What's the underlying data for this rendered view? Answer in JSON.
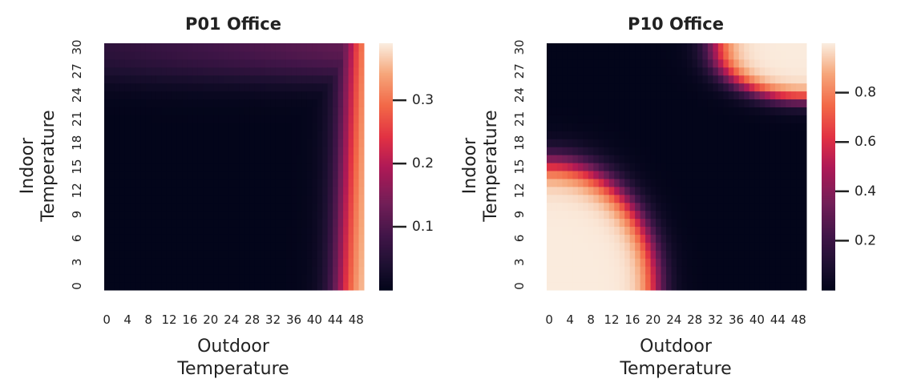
{
  "chart_data": [
    {
      "type": "heatmap",
      "title": "P01 Office",
      "xlabel": [
        "Outdoor",
        "Temperature"
      ],
      "ylabel": [
        "Indoor",
        "Temperature"
      ],
      "x_tick_labels": [
        "0",
        "4",
        "8",
        "12",
        "16",
        "20",
        "24",
        "28",
        "32",
        "36",
        "40",
        "44",
        "48"
      ],
      "x_tick_step": 4,
      "x_range": [
        0,
        49
      ],
      "y_tick_labels": [
        "0",
        "3",
        "6",
        "9",
        "12",
        "15",
        "18",
        "21",
        "24",
        "27",
        "30"
      ],
      "y_tick_step": 3,
      "y_range": [
        0,
        30
      ],
      "colormap": "rocket",
      "colorbar": {
        "range": [
          0.0,
          0.39
        ],
        "ticks": [
          0.1,
          0.2,
          0.3
        ],
        "tick_labels": [
          "0.1",
          "0.2",
          "0.3"
        ]
      },
      "pattern": "values near 0 for most of the grid; rise above outdoor temperature ~40 to about 0.39 at outdoor 49 (highest at low indoor temperature); a faint band of ~0.08–0.14 along indoor temperatures 27–30"
    },
    {
      "type": "heatmap",
      "title": "P10 Office",
      "xlabel": [
        "Outdoor",
        "Temperature"
      ],
      "ylabel": [
        "Indoor",
        "Temperature"
      ],
      "x_tick_labels": [
        "0",
        "4",
        "8",
        "12",
        "16",
        "20",
        "24",
        "28",
        "32",
        "36",
        "40",
        "44",
        "48"
      ],
      "x_tick_step": 4,
      "x_range": [
        0,
        49
      ],
      "y_tick_labels": [
        "0",
        "3",
        "6",
        "9",
        "12",
        "15",
        "18",
        "21",
        "24",
        "27",
        "30"
      ],
      "y_tick_step": 3,
      "y_range": [
        0,
        30
      ],
      "colormap": "rocket",
      "colorbar": {
        "range": [
          0.0,
          1.0
        ],
        "ticks": [
          0.2,
          0.4,
          0.6,
          0.8
        ],
        "tick_labels": [
          "0.2",
          "0.4",
          "0.6",
          "0.8"
        ]
      },
      "pattern": "value ~1.0 in the low-outdoor / low-indoor corner (outdoor < ~20, indoor < ~15) and in the high-outdoor / high-indoor corner (outdoor > ~32, indoor > ~24); near 0 elsewhere"
    }
  ]
}
